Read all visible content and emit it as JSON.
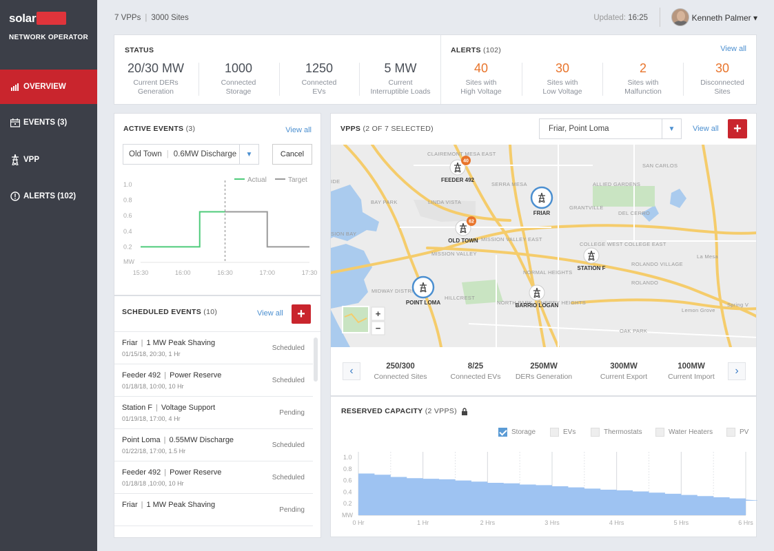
{
  "brand": {
    "logo_text": "solaredge",
    "subtitle": "NETWORK OPERATOR",
    "logo_color": "#e0343b"
  },
  "sidebar": {
    "items": [
      {
        "label": "OVERVIEW",
        "icon": "bar-chart-icon",
        "active": true
      },
      {
        "label": "EVENTS (3)",
        "icon": "calendar-icon",
        "active": false
      },
      {
        "label": "VPP",
        "icon": "power-tower-icon",
        "active": false
      },
      {
        "label": "ALERTS (102)",
        "icon": "alert-circle-icon",
        "active": false
      }
    ]
  },
  "topbar": {
    "vpps": "7 VPPs",
    "sites": "3000 Sites",
    "updated_label": "Updated:",
    "updated_time": "16:25",
    "user_name": "Kenneth Palmer ▾"
  },
  "status": {
    "title": "STATUS",
    "stats": [
      {
        "value": "20/30 MW",
        "l1": "Current DERs",
        "l2": "Generation"
      },
      {
        "value": "1000",
        "l1": "Connected",
        "l2": "Storage"
      },
      {
        "value": "1250",
        "l1": "Connected",
        "l2": "EVs"
      },
      {
        "value": "5 MW",
        "l1": "Current",
        "l2": "Interruptible Loads"
      }
    ]
  },
  "alerts": {
    "title": "ALERTS",
    "count": "(102)",
    "view_all": "View all",
    "stats": [
      {
        "value": "40",
        "l1": "Sites with",
        "l2": "High Voltage"
      },
      {
        "value": "30",
        "l1": "Sites with",
        "l2": "Low Voltage"
      },
      {
        "value": "2",
        "l1": "Sites with",
        "l2": "Malfunction"
      },
      {
        "value": "30",
        "l1": "Disconnected",
        "l2": "Sites"
      }
    ]
  },
  "active_events": {
    "title": "ACTIVE EVENTS",
    "count": "(3)",
    "view_all": "View all",
    "select_site": "Old Town",
    "select_event": "0.6MW Discharge",
    "cancel_label": "Cancel",
    "legend_actual": "Actual",
    "legend_target": "Target",
    "actual_color": "#4ecb7a",
    "target_color": "#9a9a9a"
  },
  "scheduled_events": {
    "title": "SCHEDULED EVENTS",
    "count": "(10)",
    "view_all": "View all",
    "rows": [
      {
        "site": "Friar",
        "event": "1 MW Peak Shaving",
        "date": "01/15/18, 20:30, 1 Hr",
        "status": "Scheduled"
      },
      {
        "site": "Feeder 492",
        "event": "Power Reserve",
        "date": "01/18/18, 10:00, 10 Hr",
        "status": "Scheduled"
      },
      {
        "site": "Station F",
        "event": "Voltage Support",
        "date": "01/19/18, 17:00, 4 Hr",
        "status": "Pending"
      },
      {
        "site": "Point Loma",
        "event": "0.55MW Discharge",
        "date": "01/22/18, 17:00, 1.5 Hr",
        "status": "Scheduled"
      },
      {
        "site": "Feeder 492",
        "event": "Power Reserve",
        "date": "01/18/18 ,10:00, 10 Hr",
        "status": "Scheduled"
      },
      {
        "site": "Friar",
        "event": "1 MW Peak Shaving",
        "date": "",
        "status": "Pending"
      }
    ]
  },
  "vpps": {
    "title": "VPPS",
    "subtitle": "(2 OF 7 SELECTED)",
    "select_value": "Friar, Point Loma",
    "view_all": "View all",
    "map": {
      "sites": [
        {
          "name": "FEEDER 492",
          "badge": "40",
          "selected": false
        },
        {
          "name": "FRIAR",
          "badge": "",
          "selected": true
        },
        {
          "name": "OLD TOWN",
          "badge": "62",
          "selected": false
        },
        {
          "name": "STATION F",
          "badge": "",
          "selected": false
        },
        {
          "name": "POINT LOMA",
          "badge": "",
          "selected": true
        },
        {
          "name": "BARRIO LOGAN",
          "badge": "",
          "selected": false
        }
      ],
      "place_labels": [
        "CLAIREMONT MESA EAST",
        "SAN CARLOS",
        "SERRA MESA",
        "ALLIED GARDENS",
        "BAY PARK",
        "LINDA VISTA",
        "GRANTVILLE",
        "DEL CERRO",
        "MISSION VALLEY EAST",
        "MISSION VALLEY",
        "COLLEGE WEST",
        "COLLEGE EAST",
        "La Mesa",
        "ROLANDO VILLAGE",
        "ROLANDO",
        "NORMAL HEIGHTS",
        "MIDWAY DISTRICT",
        "HILLCREST",
        "NORTH PARK",
        "CHERRY HEIGHTS",
        "Lemon Grove",
        "Spring V",
        "OAK PARK",
        "SION BAY",
        "IDE"
      ],
      "zoom_in": "+",
      "zoom_out": "−"
    },
    "stats": [
      {
        "value": "250/300",
        "label": "Connected Sites"
      },
      {
        "value": "8/25",
        "label": "Connected EVs"
      },
      {
        "value": "250MW",
        "label": "DERs Generation"
      },
      {
        "value": "300MW",
        "label": "Current Export"
      },
      {
        "value": "100MW",
        "label": "Current Import"
      }
    ]
  },
  "reserved_capacity": {
    "title": "RESERVED CAPACITY",
    "subtitle": "(2 VPPS)",
    "legend": [
      {
        "label": "Storage",
        "checked": true
      },
      {
        "label": "EVs",
        "checked": false
      },
      {
        "label": "Thermostats",
        "checked": false
      },
      {
        "label": "Water Heaters",
        "checked": false
      },
      {
        "label": "PV",
        "checked": false
      }
    ],
    "fill_color": "#9ec3f2"
  },
  "chart_data": [
    {
      "type": "line",
      "x": [
        "15:30",
        "16:00",
        "16:30",
        "17:00",
        "17:30"
      ],
      "ylabel": "MW",
      "ylim": [
        0,
        1.0
      ],
      "yticks": [
        0.2,
        0.4,
        0.6,
        0.8,
        1.0
      ],
      "now_marker": "16:30",
      "series": [
        {
          "name": "Actual",
          "points": [
            [
              "15:30",
              0.2
            ],
            [
              "16:12",
              0.2
            ],
            [
              "16:12",
              0.65
            ],
            [
              "16:30",
              0.65
            ]
          ]
        },
        {
          "name": "Target",
          "points": [
            [
              "16:30",
              0.65
            ],
            [
              "17:00",
              0.65
            ],
            [
              "17:00",
              0.2
            ],
            [
              "17:30",
              0.2
            ]
          ]
        }
      ],
      "legend_position": "top-right"
    },
    {
      "type": "area",
      "x_ticks": [
        "0 Hr",
        "1 Hr",
        "2 Hrs",
        "3 Hrs",
        "4 Hrs",
        "5 Hrs",
        "6 Hrs"
      ],
      "yticks": [
        0.2,
        0.4,
        0.6,
        0.8,
        1.0
      ],
      "ylabel": "MW",
      "ylim": [
        0,
        1.0
      ],
      "xlim": [
        0,
        6
      ],
      "series": [
        {
          "name": "Storage",
          "step_hours": 0.25,
          "values": [
            0.72,
            0.7,
            0.66,
            0.64,
            0.63,
            0.62,
            0.6,
            0.58,
            0.56,
            0.55,
            0.53,
            0.52,
            0.5,
            0.48,
            0.46,
            0.44,
            0.43,
            0.41,
            0.39,
            0.37,
            0.35,
            0.33,
            0.31,
            0.29,
            0.27,
            0.25
          ]
        }
      ],
      "legend_position": "top-right"
    }
  ]
}
